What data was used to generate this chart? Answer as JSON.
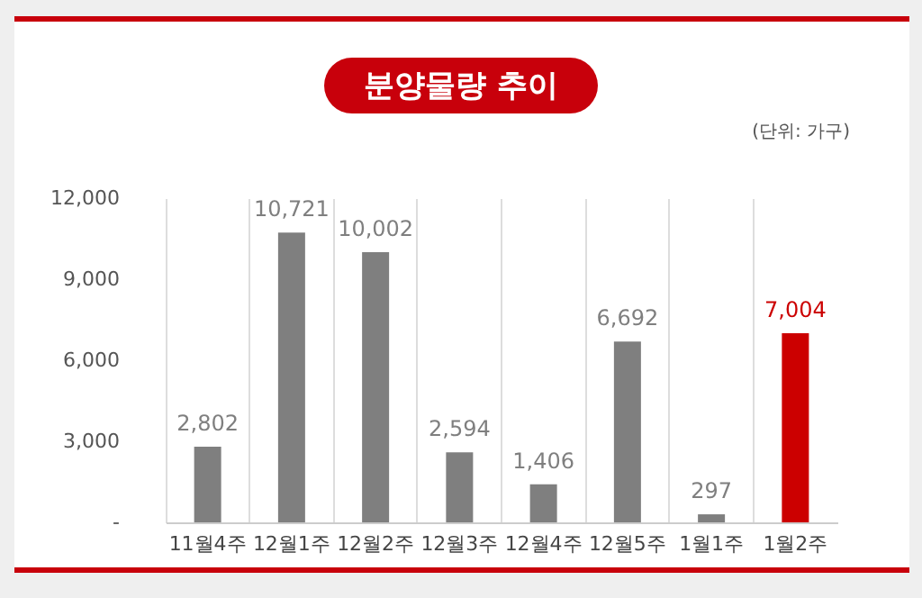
{
  "chart_data": {
    "type": "bar",
    "title": "분양물량 추이",
    "subtitle": "(단위: 가구)",
    "categories": [
      "11월4주",
      "12월1주",
      "12월2주",
      "12월3주",
      "12월4주",
      "12월5주",
      "1월1주",
      "1월2주"
    ],
    "values": [
      2802,
      10721,
      10002,
      2594,
      1406,
      6692,
      297,
      7004
    ],
    "value_labels": [
      "2,802",
      "10,721",
      "10,002",
      "2,594",
      "1,406",
      "6,692",
      "297",
      "7,004"
    ],
    "colors": [
      "#7f7f7f",
      "#7f7f7f",
      "#7f7f7f",
      "#7f7f7f",
      "#7f7f7f",
      "#7f7f7f",
      "#7f7f7f",
      "#cc0000"
    ],
    "ylim": [
      0,
      12000
    ],
    "yticks": [
      {
        "value": 0,
        "label": "-"
      },
      {
        "value": 3000,
        "label": "3,000"
      },
      {
        "value": 6000,
        "label": "6,000"
      },
      {
        "value": 9000,
        "label": "9,000"
      },
      {
        "value": 12000,
        "label": "12,000"
      }
    ],
    "grid": "x"
  }
}
